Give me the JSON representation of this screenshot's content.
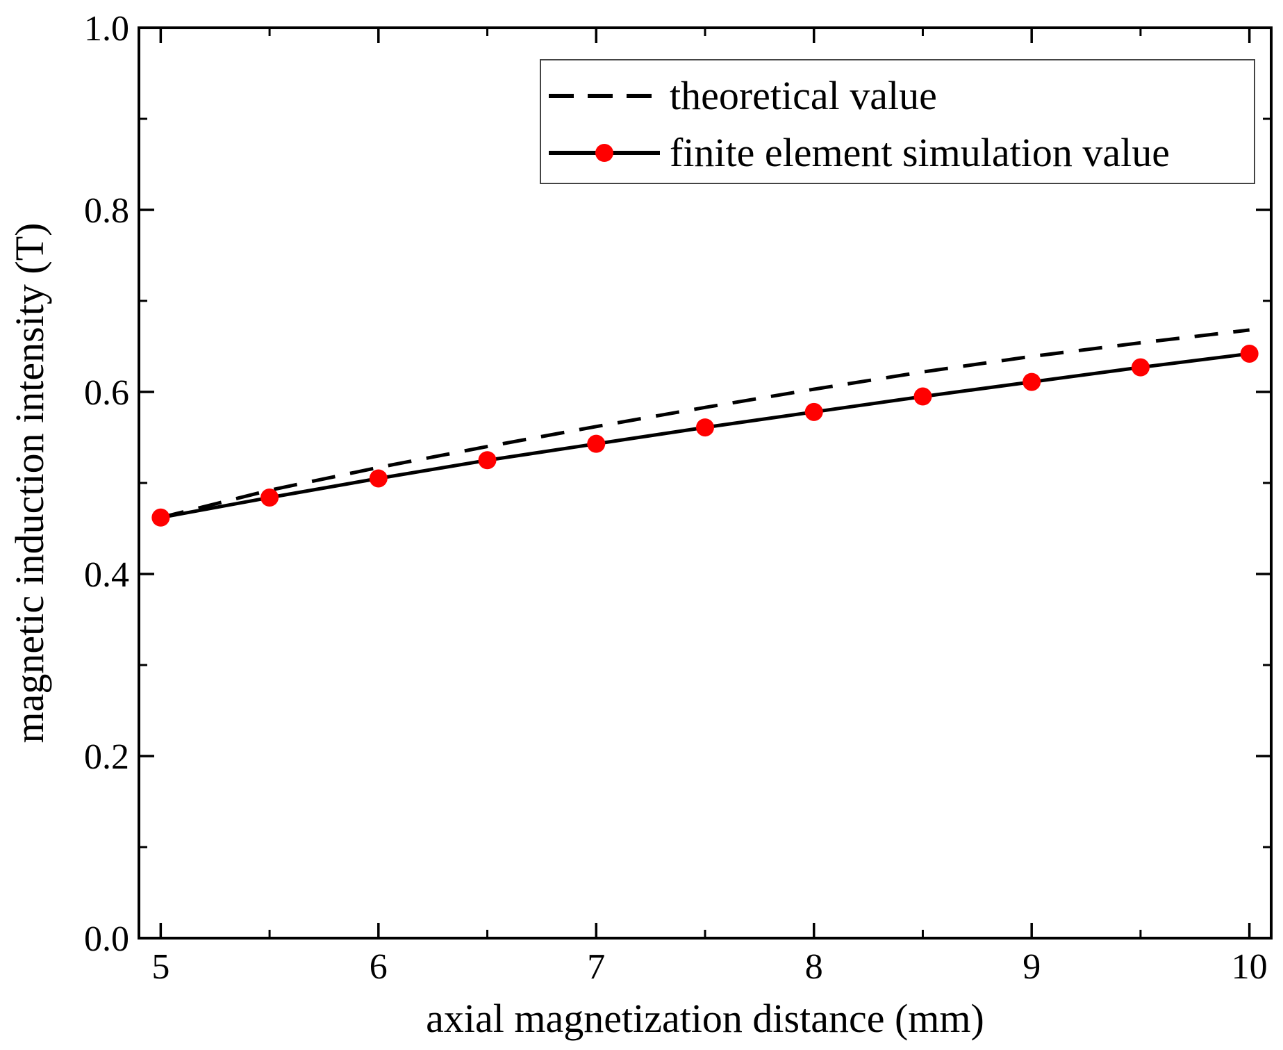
{
  "chart_data": {
    "type": "line",
    "title": "",
    "xlabel": "axial magnetization distance (mm)",
    "ylabel": "magnetic induction intensity (T)",
    "xlim": [
      4.9,
      10.1
    ],
    "ylim": [
      0.0,
      1.0
    ],
    "x_ticks": [
      5,
      6,
      7,
      8,
      9,
      10
    ],
    "x_tick_labels": [
      "5",
      "6",
      "7",
      "8",
      "9",
      "10"
    ],
    "x_minor_ticks": [
      5.5,
      6.5,
      7.5,
      8.5,
      9.5
    ],
    "y_ticks": [
      0.0,
      0.2,
      0.4,
      0.6,
      0.8,
      1.0
    ],
    "y_tick_labels": [
      "0.0",
      "0.2",
      "0.4",
      "0.6",
      "0.8",
      "1.0"
    ],
    "y_minor_ticks": [
      0.1,
      0.3,
      0.5,
      0.7,
      0.9
    ],
    "grid": false,
    "legend_position": "top-right",
    "x": [
      5,
      5.5,
      6,
      6.5,
      7,
      7.5,
      8,
      8.5,
      9,
      9.5,
      10
    ],
    "series": [
      {
        "name": "theoretical value",
        "style": "dashed",
        "color": "#000000",
        "marker": "none",
        "values": [
          0.462,
          0.492,
          0.517,
          0.54,
          0.562,
          0.583,
          0.603,
          0.622,
          0.639,
          0.654,
          0.668
        ]
      },
      {
        "name": "finite element simulation value",
        "style": "solid",
        "color": "#000000",
        "marker": "circle",
        "marker_color": "#ff0000",
        "values": [
          0.462,
          0.484,
          0.505,
          0.525,
          0.543,
          0.561,
          0.578,
          0.595,
          0.611,
          0.627,
          0.642
        ]
      }
    ]
  }
}
